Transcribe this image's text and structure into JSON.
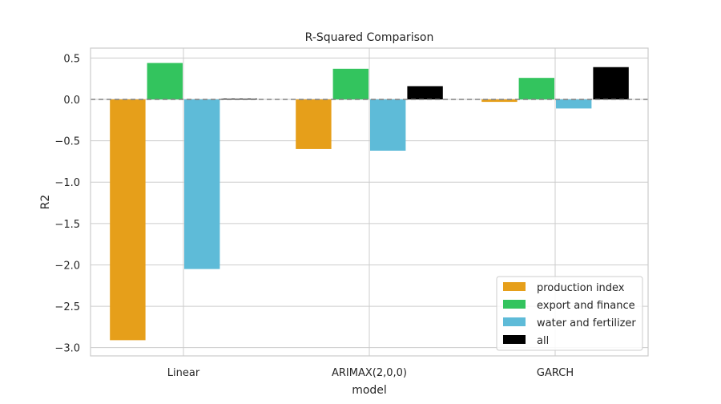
{
  "chart_data": {
    "type": "bar",
    "title": "R-Squared Comparison",
    "xlabel": "model",
    "ylabel": "R2",
    "categories": [
      "Linear",
      "ARIMAX(2,0,0)",
      "GARCH"
    ],
    "ylim": [
      -3.1,
      0.62
    ],
    "yticks": [
      0.5,
      0.0,
      -0.5,
      -1.0,
      -1.5,
      -2.0,
      -2.5,
      -3.0
    ],
    "ytick_labels": [
      "0.5",
      "0.0",
      "−0.5",
      "−1.0",
      "−1.5",
      "−2.0",
      "−2.5",
      "−3.0"
    ],
    "grid": true,
    "reference_line": 0.0,
    "legend_position": "lower-right",
    "series": [
      {
        "name": "production index",
        "color": "#e69f1a",
        "values": [
          -2.91,
          -0.6,
          -0.03
        ]
      },
      {
        "name": "export and finance",
        "color": "#33c45e",
        "values": [
          0.44,
          0.37,
          0.26
        ]
      },
      {
        "name": "water and fertilizer",
        "color": "#5ebbd8",
        "values": [
          -2.05,
          -0.62,
          -0.11
        ]
      },
      {
        "name": "all",
        "color": "#000000",
        "values": [
          0.01,
          0.16,
          0.39
        ]
      }
    ]
  }
}
